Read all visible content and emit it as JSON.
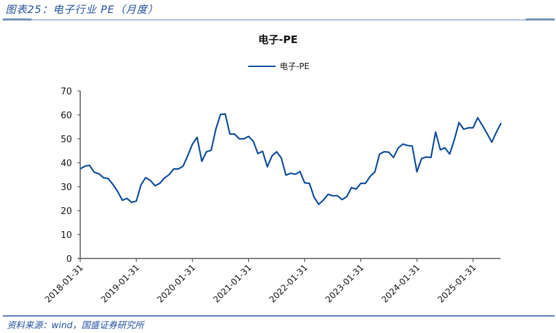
{
  "header": {
    "figure_title": "图表25：电子行业 PE（月度）"
  },
  "footer": {
    "source": "资料来源：wind，国盛证券研究所"
  },
  "chart_data": {
    "type": "line",
    "title": "电子-PE",
    "xlabel": "",
    "ylabel": "",
    "ylim": [
      0,
      70
    ],
    "yticks": [
      0,
      10,
      20,
      30,
      40,
      50,
      60,
      70
    ],
    "xtick_labels": [
      "2018-01-31",
      "2019-01-31",
      "2020-01-31",
      "2021-01-31",
      "2022-01-31",
      "2023-01-31",
      "2024-01-31",
      "2025-01-31"
    ],
    "legend": {
      "position": "top",
      "entries": [
        "电子-PE"
      ]
    },
    "grid": false,
    "line_color": "#0b4a9c",
    "series": [
      {
        "name": "电子-PE",
        "x_start": "2018-01-31",
        "frequency": "monthly",
        "values": [
          37.4,
          38.6,
          38.9,
          36.0,
          35.4,
          33.7,
          33.4,
          30.9,
          28.0,
          24.3,
          25.1,
          23.4,
          24.0,
          30.8,
          33.8,
          32.6,
          30.4,
          31.4,
          33.6,
          35.0,
          37.4,
          37.4,
          38.6,
          43.0,
          47.8,
          50.6,
          40.6,
          44.6,
          45.2,
          54.0,
          60.2,
          60.4,
          52.0,
          52.0,
          50.0,
          50.0,
          51.0,
          49.0,
          43.8,
          44.8,
          38.3,
          42.8,
          44.6,
          42.0,
          34.8,
          35.6,
          35.2,
          36.3,
          31.6,
          31.4,
          25.6,
          22.6,
          24.4,
          26.8,
          26.2,
          26.2,
          24.6,
          25.8,
          29.6,
          29.0,
          31.4,
          31.4,
          34.3,
          36.2,
          43.6,
          44.6,
          44.4,
          42.2,
          46.2,
          47.8,
          47.2,
          47.0,
          36.2,
          41.8,
          42.4,
          42.2,
          52.8,
          45.4,
          46.2,
          43.6,
          49.6,
          56.8,
          54.0,
          54.6,
          54.6,
          58.8,
          55.6,
          52.2,
          48.6,
          52.8,
          56.6
        ]
      }
    ]
  }
}
